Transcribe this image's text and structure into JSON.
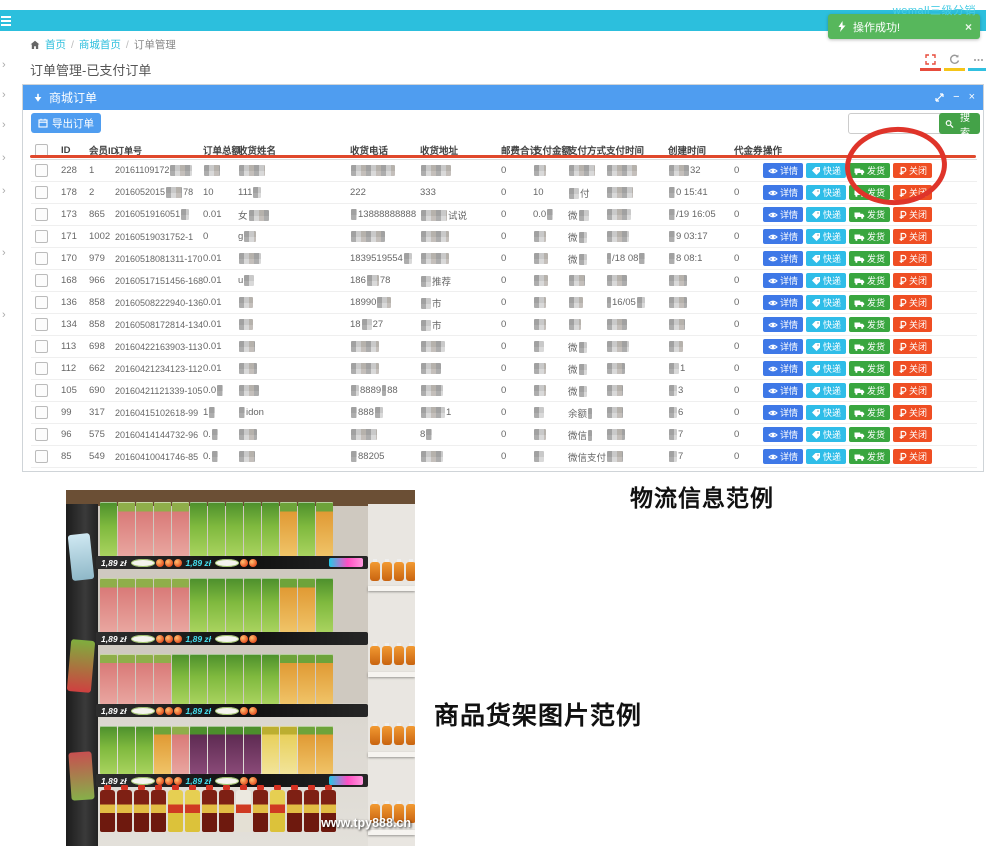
{
  "topbar": {
    "brand": "wemall三级分销"
  },
  "toast": {
    "text": "操作成功!",
    "close": "×",
    "color": "#57b75c"
  },
  "breadcrumb": {
    "items": [
      "首页",
      "商城首页",
      "订单管理"
    ],
    "sep": "/"
  },
  "page": {
    "title": "订单管理-已支付订单"
  },
  "panel": {
    "title": "商城订单",
    "minimize": "−",
    "close": "×"
  },
  "toolbar": {
    "export_label": "导出订单",
    "search_value": "",
    "search_label": "搜索"
  },
  "table": {
    "headers": [
      "ID",
      "会员ID",
      "订单号",
      "订单总额",
      "收货姓名",
      "收货电话",
      "收货地址",
      "邮费合计",
      "支付金额",
      "支付方式",
      "支付时间",
      "创建时间",
      "代金券",
      "操作"
    ],
    "actions": [
      {
        "key": "detail",
        "label": "详情",
        "color": "#3e78e7"
      },
      {
        "key": "express",
        "label": "快递",
        "color": "#2fbde8"
      },
      {
        "key": "ship",
        "label": "发货",
        "color": "#39a63f"
      },
      {
        "key": "close",
        "label": "关闭",
        "color": "#ef4e23"
      }
    ],
    "rows": [
      {
        "cells": [
          [
            {
              "t": "228"
            }
          ],
          [
            {
              "t": "1"
            }
          ],
          [
            {
              "t": "20161109172"
            },
            {
              "m": 22
            }
          ],
          [
            {
              "m": 16
            }
          ],
          [
            {
              "m": 26
            }
          ],
          [
            {
              "m": 44
            }
          ],
          [
            {
              "m": 30
            }
          ],
          [
            {
              "t": "0"
            }
          ],
          [
            {
              "m": 12
            }
          ],
          [
            {
              "m": 26
            }
          ],
          [
            {
              "m": 30
            }
          ],
          [
            {
              "m": 20
            },
            {
              "t": "32"
            }
          ],
          [
            {
              "t": "0"
            }
          ]
        ]
      },
      {
        "cells": [
          [
            {
              "t": "178"
            }
          ],
          [
            {
              "t": "2"
            }
          ],
          [
            {
              "t": "2016052015"
            },
            {
              "m": 16
            },
            {
              "t": "78"
            }
          ],
          [
            {
              "t": "10"
            }
          ],
          [
            {
              "t": "111"
            },
            {
              "m": 8
            }
          ],
          [
            {
              "t": "222"
            }
          ],
          [
            {
              "t": "333"
            }
          ],
          [
            {
              "t": "0"
            }
          ],
          [
            {
              "t": "10"
            }
          ],
          [
            {
              "m": 10
            },
            {
              "t": "付"
            }
          ],
          [
            {
              "m": 26
            }
          ],
          [
            {
              "m": 6
            },
            {
              "t": "0 15:41"
            }
          ],
          [
            {
              "t": "0"
            }
          ]
        ]
      },
      {
        "cells": [
          [
            {
              "t": "173"
            }
          ],
          [
            {
              "t": "865"
            }
          ],
          [
            {
              "t": "2016051916051"
            },
            {
              "m": 8
            }
          ],
          [
            {
              "t": "0.01"
            }
          ],
          [
            {
              "t": "女"
            },
            {
              "m": 20
            }
          ],
          [
            {
              "m": 6
            },
            {
              "t": "13888888888"
            }
          ],
          [
            {
              "m": 26
            },
            {
              "t": "试说"
            }
          ],
          [
            {
              "t": "0"
            }
          ],
          [
            {
              "t": "0.0"
            },
            {
              "m": 6
            }
          ],
          [
            {
              "t": "微"
            },
            {
              "m": 10
            }
          ],
          [
            {
              "m": 24
            }
          ],
          [
            {
              "m": 6
            },
            {
              "t": "/19 16:05"
            }
          ],
          [
            {
              "t": "0"
            }
          ]
        ]
      },
      {
        "cells": [
          [
            {
              "t": "171"
            }
          ],
          [
            {
              "t": "1002"
            }
          ],
          [
            {
              "t": "20160519031752-1"
            }
          ],
          [
            {
              "t": "0"
            }
          ],
          [
            {
              "t": "g"
            },
            {
              "m": 12
            }
          ],
          [
            {
              "m": 34
            }
          ],
          [
            {
              "m": 28
            }
          ],
          [
            {
              "t": "0"
            }
          ],
          [
            {
              "m": 12
            }
          ],
          [
            {
              "t": "微"
            },
            {
              "m": 8
            }
          ],
          [
            {
              "m": 22
            }
          ],
          [
            {
              "m": 6
            },
            {
              "t": "9 03:17"
            }
          ],
          [
            {
              "t": "0"
            }
          ]
        ]
      },
      {
        "cells": [
          [
            {
              "t": "170"
            }
          ],
          [
            {
              "t": "979"
            }
          ],
          [
            {
              "t": "20160518081311-170"
            }
          ],
          [
            {
              "t": "0.01"
            }
          ],
          [
            {
              "m": 22
            }
          ],
          [
            {
              "t": "1839519554"
            },
            {
              "m": 8
            }
          ],
          [
            {
              "m": 28
            }
          ],
          [
            {
              "t": "0"
            }
          ],
          [
            {
              "m": 14
            }
          ],
          [
            {
              "t": "微"
            },
            {
              "m": 8
            }
          ],
          [
            {
              "m": 4
            },
            {
              "t": "/18 08"
            },
            {
              "m": 6
            }
          ],
          [
            {
              "m": 6
            },
            {
              "t": "8 08:1"
            }
          ],
          [
            {
              "t": "0"
            }
          ]
        ]
      },
      {
        "cells": [
          [
            {
              "t": "168"
            }
          ],
          [
            {
              "t": "966"
            }
          ],
          [
            {
              "t": "20160517151456-168"
            }
          ],
          [
            {
              "t": "0.01"
            }
          ],
          [
            {
              "t": "u"
            },
            {
              "m": 10
            }
          ],
          [
            {
              "t": "186"
            },
            {
              "m": 12
            },
            {
              "t": "78"
            }
          ],
          [
            {
              "m": 10
            },
            {
              "t": "推荐"
            }
          ],
          [
            {
              "t": "0"
            }
          ],
          [
            {
              "m": 14
            }
          ],
          [
            {
              "m": 16
            }
          ],
          [
            {
              "m": 20
            }
          ],
          [
            {
              "m": 18
            }
          ],
          [
            {
              "t": "0"
            }
          ]
        ]
      },
      {
        "cells": [
          [
            {
              "t": "136"
            }
          ],
          [
            {
              "t": "858"
            }
          ],
          [
            {
              "t": "20160508222940-136"
            }
          ],
          [
            {
              "t": "0.01"
            }
          ],
          [
            {
              "m": 14
            }
          ],
          [
            {
              "t": "18990"
            },
            {
              "m": 14
            }
          ],
          [
            {
              "m": 10
            },
            {
              "t": "市"
            }
          ],
          [
            {
              "t": "0"
            }
          ],
          [
            {
              "m": 12
            }
          ],
          [
            {
              "m": 14
            }
          ],
          [
            {
              "m": 4
            },
            {
              "t": "16/05"
            },
            {
              "m": 8
            }
          ],
          [
            {
              "m": 18
            }
          ],
          [
            {
              "t": "0"
            }
          ]
        ]
      },
      {
        "cells": [
          [
            {
              "t": "134"
            }
          ],
          [
            {
              "t": "858"
            }
          ],
          [
            {
              "t": "20160508172814-134"
            }
          ],
          [
            {
              "t": "0.01"
            }
          ],
          [
            {
              "m": 14
            }
          ],
          [
            {
              "t": "18"
            },
            {
              "m": 10
            },
            {
              "t": "27"
            }
          ],
          [
            {
              "m": 10
            },
            {
              "t": "市"
            }
          ],
          [
            {
              "t": "0"
            }
          ],
          [
            {
              "m": 12
            }
          ],
          [
            {
              "m": 12
            }
          ],
          [
            {
              "m": 20
            }
          ],
          [
            {
              "m": 16
            }
          ],
          [
            {
              "t": "0"
            }
          ]
        ]
      },
      {
        "cells": [
          [
            {
              "t": "113"
            }
          ],
          [
            {
              "t": "698"
            }
          ],
          [
            {
              "t": "20160422163903-113"
            }
          ],
          [
            {
              "t": "0.01"
            }
          ],
          [
            {
              "m": 16
            }
          ],
          [
            {
              "m": 28
            }
          ],
          [
            {
              "m": 24
            }
          ],
          [
            {
              "t": "0"
            }
          ],
          [
            {
              "m": 10
            }
          ],
          [
            {
              "t": "微"
            },
            {
              "m": 8
            }
          ],
          [
            {
              "m": 22
            }
          ],
          [
            {
              "m": 14
            }
          ],
          [
            {
              "t": "0"
            }
          ]
        ]
      },
      {
        "cells": [
          [
            {
              "t": "112"
            }
          ],
          [
            {
              "t": "662"
            }
          ],
          [
            {
              "t": "20160421234123-112"
            }
          ],
          [
            {
              "t": "0.01"
            }
          ],
          [
            {
              "m": 18
            }
          ],
          [
            {
              "m": 28
            }
          ],
          [
            {
              "m": 20
            }
          ],
          [
            {
              "t": "0"
            }
          ],
          [
            {
              "m": 12
            }
          ],
          [
            {
              "t": "微"
            },
            {
              "m": 8
            }
          ],
          [
            {
              "m": 18
            }
          ],
          [
            {
              "m": 10
            },
            {
              "t": "1"
            }
          ],
          [
            {
              "t": "0"
            }
          ]
        ]
      },
      {
        "cells": [
          [
            {
              "t": "105"
            }
          ],
          [
            {
              "t": "690"
            }
          ],
          [
            {
              "t": "20160421121339-105"
            }
          ],
          [
            {
              "t": "0.0"
            },
            {
              "m": 6
            }
          ],
          [
            {
              "m": 20
            }
          ],
          [
            {
              "m": 8
            },
            {
              "t": "8889"
            },
            {
              "m": 4
            },
            {
              "t": "88"
            }
          ],
          [
            {
              "m": 22
            }
          ],
          [
            {
              "t": "0"
            }
          ],
          [
            {
              "m": 12
            }
          ],
          [
            {
              "t": "微"
            },
            {
              "m": 8
            }
          ],
          [
            {
              "m": 16
            }
          ],
          [
            {
              "m": 8
            },
            {
              "t": "3"
            }
          ],
          [
            {
              "t": "0"
            }
          ]
        ]
      },
      {
        "cells": [
          [
            {
              "t": "99"
            }
          ],
          [
            {
              "t": "317"
            }
          ],
          [
            {
              "t": "20160415102618-99"
            }
          ],
          [
            {
              "t": "1"
            },
            {
              "m": 6
            }
          ],
          [
            {
              "m": 6
            },
            {
              "t": "idon"
            }
          ],
          [
            {
              "m": 6
            },
            {
              "t": "888"
            },
            {
              "m": 8
            }
          ],
          [
            {
              "m": 24
            },
            {
              "t": "1"
            }
          ],
          [
            {
              "t": "0"
            }
          ],
          [
            {
              "m": 10
            }
          ],
          [
            {
              "t": "余额"
            },
            {
              "m": 4
            }
          ],
          [
            {
              "m": 16
            }
          ],
          [
            {
              "m": 8
            },
            {
              "t": "6"
            }
          ],
          [
            {
              "t": "0"
            }
          ]
        ]
      },
      {
        "cells": [
          [
            {
              "t": "96"
            }
          ],
          [
            {
              "t": "575"
            }
          ],
          [
            {
              "t": "20160414144732-96"
            }
          ],
          [
            {
              "t": "0."
            },
            {
              "m": 6
            }
          ],
          [
            {
              "m": 18
            }
          ],
          [
            {
              "m": 26
            }
          ],
          [
            {
              "t": "8"
            },
            {
              "m": 6
            }
          ],
          [
            {
              "t": "0"
            }
          ],
          [
            {
              "m": 12
            }
          ],
          [
            {
              "t": "微信"
            },
            {
              "m": 4
            }
          ],
          [
            {
              "m": 18
            }
          ],
          [
            {
              "m": 8
            },
            {
              "t": "7"
            }
          ],
          [
            {
              "t": "0"
            }
          ]
        ]
      },
      {
        "cells": [
          [
            {
              "t": "85"
            }
          ],
          [
            {
              "t": "549"
            }
          ],
          [
            {
              "t": "20160410041746-85"
            }
          ],
          [
            {
              "t": "0."
            },
            {
              "m": 6
            }
          ],
          [
            {
              "m": 16
            }
          ],
          [
            {
              "m": 6
            },
            {
              "t": "88205"
            }
          ],
          [
            {
              "m": 22
            }
          ],
          [
            {
              "t": "0"
            }
          ],
          [
            {
              "m": 10
            }
          ],
          [
            {
              "t": "微信支付"
            }
          ],
          [
            {
              "m": 16
            }
          ],
          [
            {
              "m": 8
            },
            {
              "t": "7"
            }
          ],
          [
            {
              "t": "0"
            }
          ]
        ]
      }
    ]
  },
  "annotations": {
    "logistics_label": "物流信息范例",
    "shelf_label": "商品货架图片范例"
  },
  "shelf_photo": {
    "price_label": "1,89 zł",
    "watermark": "www.tpy888.cn"
  }
}
